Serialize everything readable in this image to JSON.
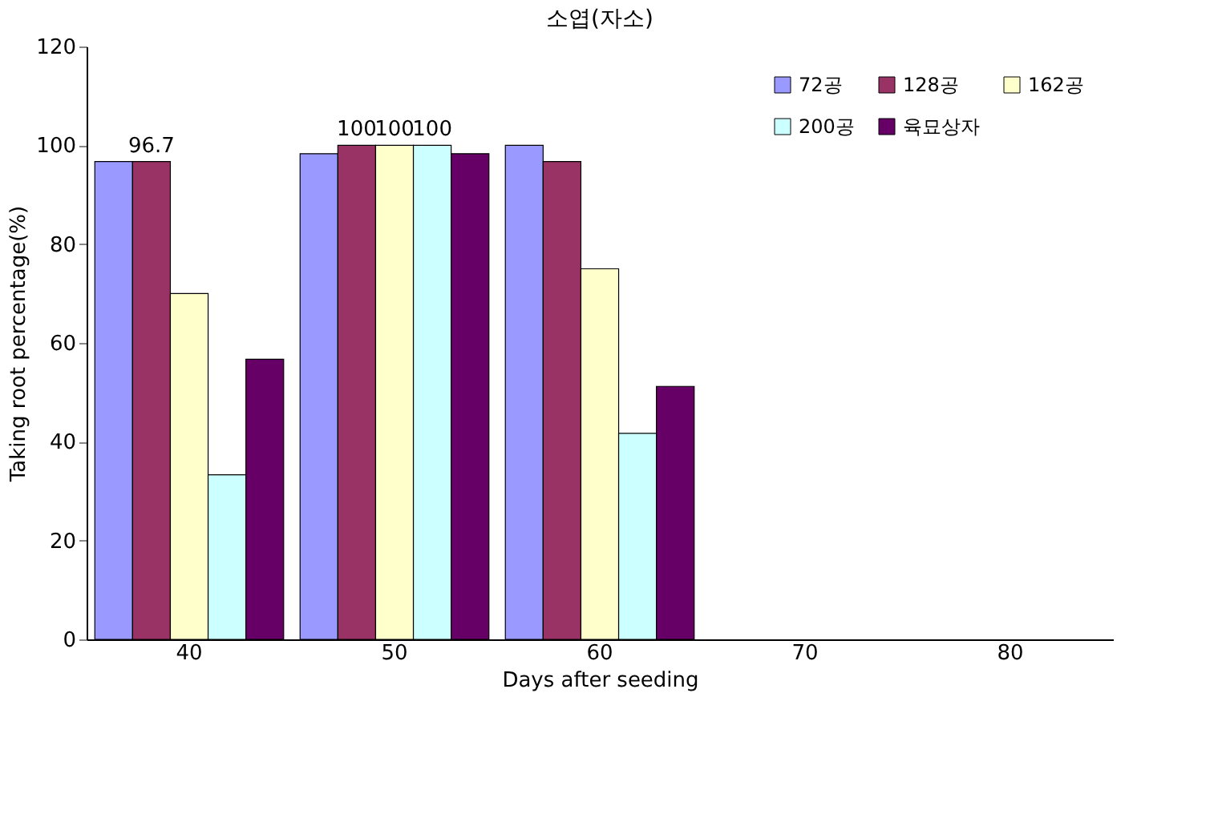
{
  "chart_data": {
    "type": "bar",
    "title": "소엽(자소)",
    "xlabel": "Days after seeding",
    "ylabel": "Taking root percentage(%)",
    "categories": [
      "40",
      "50",
      "60",
      "70",
      "80"
    ],
    "series": [
      {
        "name": "72공",
        "color": "#9999ff",
        "values": [
          96.7,
          98.3,
          100,
          null,
          null
        ],
        "value_labels": [
          null,
          null,
          null,
          null,
          null
        ]
      },
      {
        "name": "128공",
        "color": "#993366",
        "values": [
          96.7,
          100,
          96.7,
          null,
          null
        ],
        "value_labels": [
          "96.7",
          "100",
          null,
          null,
          null
        ]
      },
      {
        "name": "162공",
        "color": "#ffffcc",
        "values": [
          70,
          100,
          75,
          null,
          null
        ],
        "value_labels": [
          null,
          "100",
          null,
          null,
          null
        ]
      },
      {
        "name": "200공",
        "color": "#ccffff",
        "values": [
          33.3,
          100,
          41.7,
          null,
          null
        ],
        "value_labels": [
          null,
          "100",
          null,
          null,
          null
        ]
      },
      {
        "name": "육묘상자",
        "color": "#660066",
        "values": [
          56.7,
          98.3,
          51.2,
          null,
          null
        ],
        "value_labels": [
          null,
          null,
          null,
          null,
          null
        ]
      }
    ],
    "ylim": [
      0,
      120
    ],
    "yticks": [
      0,
      20,
      40,
      60,
      80,
      100,
      120
    ],
    "grid": false,
    "legend": "top right"
  }
}
